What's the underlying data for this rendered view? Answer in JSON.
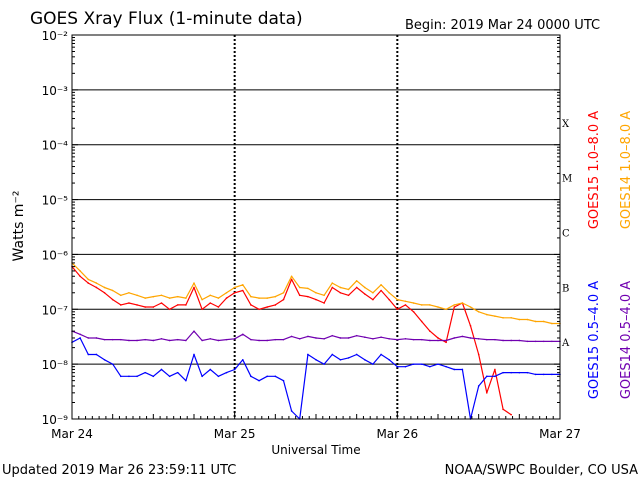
{
  "chart_data": {
    "type": "line",
    "title": "GOES Xray Flux (1-minute data)",
    "begin_text": "Begin:  2019 Mar 24 0000 UTC",
    "ylabel": "Watts m⁻²",
    "xlabel": "Universal Time",
    "y_scale": "log",
    "ylim": [
      1e-09,
      0.01
    ],
    "x_unit": "days since 2019 Mar 24 00:00 UTC",
    "xlim": [
      0,
      3
    ],
    "x_ticks": [
      {
        "value": 0,
        "label": "Mar 24"
      },
      {
        "value": 1,
        "label": "Mar 25"
      },
      {
        "value": 2,
        "label": "Mar 26"
      },
      {
        "value": 3,
        "label": "Mar 27"
      }
    ],
    "y_ticks": [
      {
        "exp": -2,
        "label": "10⁻²"
      },
      {
        "exp": -3,
        "label": "10⁻³"
      },
      {
        "exp": -4,
        "label": "10⁻⁴"
      },
      {
        "exp": -5,
        "label": "10⁻⁵"
      },
      {
        "exp": -6,
        "label": "10⁻⁶"
      },
      {
        "exp": -7,
        "label": "10⁻⁷"
      },
      {
        "exp": -8,
        "label": "10⁻⁸"
      },
      {
        "exp": -9,
        "label": "10⁻⁹"
      }
    ],
    "flare_classes": [
      {
        "label": "X",
        "exp": -3.6
      },
      {
        "label": "M",
        "exp": -4.6
      },
      {
        "label": "C",
        "exp": -5.6
      },
      {
        "label": "B",
        "exp": -6.6
      },
      {
        "label": "A",
        "exp": -7.6
      }
    ],
    "grid": true,
    "legend_placement": "right, vertical",
    "series": [
      {
        "name": "GOES15 1.0–8.0 A",
        "color": "#ff0000",
        "x": [
          0.0,
          0.05,
          0.1,
          0.15,
          0.2,
          0.25,
          0.3,
          0.35,
          0.4,
          0.45,
          0.5,
          0.55,
          0.6,
          0.65,
          0.7,
          0.75,
          0.8,
          0.85,
          0.9,
          0.95,
          1.0,
          1.05,
          1.1,
          1.15,
          1.2,
          1.25,
          1.3,
          1.35,
          1.4,
          1.45,
          1.5,
          1.55,
          1.6,
          1.65,
          1.7,
          1.75,
          1.8,
          1.85,
          1.9,
          1.95,
          2.0,
          2.05,
          2.1,
          2.15,
          2.2,
          2.25,
          2.3,
          2.35,
          2.4,
          2.45,
          2.5,
          2.55,
          2.6,
          2.65,
          2.7
        ],
        "y": [
          6e-07,
          4e-07,
          3e-07,
          2.5e-07,
          2e-07,
          1.5e-07,
          1.2e-07,
          1.3e-07,
          1.2e-07,
          1.1e-07,
          1.1e-07,
          1.3e-07,
          1e-07,
          1.2e-07,
          1.2e-07,
          2.5e-07,
          1e-07,
          1.3e-07,
          1.1e-07,
          1.6e-07,
          2e-07,
          2.2e-07,
          1.2e-07,
          1e-07,
          1.1e-07,
          1.2e-07,
          1.5e-07,
          3.5e-07,
          1.8e-07,
          1.7e-07,
          1.5e-07,
          1.3e-07,
          2.5e-07,
          2e-07,
          1.8e-07,
          2.5e-07,
          1.9e-07,
          1.5e-07,
          2.2e-07,
          1.5e-07,
          1e-07,
          1.2e-07,
          9e-08,
          6e-08,
          4e-08,
          3e-08,
          2.5e-08,
          1.1e-07,
          1.3e-07,
          5e-08,
          1.5e-08,
          3e-09,
          8e-09,
          1.5e-09,
          1.2e-09
        ]
      },
      {
        "name": "GOES14 1.0–8.0 A",
        "color": "#ffa500",
        "x": [
          0.0,
          0.05,
          0.1,
          0.15,
          0.2,
          0.25,
          0.3,
          0.35,
          0.4,
          0.45,
          0.5,
          0.55,
          0.6,
          0.65,
          0.7,
          0.75,
          0.8,
          0.85,
          0.9,
          0.95,
          1.0,
          1.05,
          1.1,
          1.15,
          1.2,
          1.25,
          1.3,
          1.35,
          1.4,
          1.45,
          1.5,
          1.55,
          1.6,
          1.65,
          1.7,
          1.75,
          1.8,
          1.85,
          1.9,
          1.95,
          2.0,
          2.05,
          2.1,
          2.15,
          2.2,
          2.25,
          2.3,
          2.35,
          2.4,
          2.45,
          2.5,
          2.55,
          2.6,
          2.65,
          2.7,
          2.75,
          2.8,
          2.85,
          2.9,
          2.95,
          3.0
        ],
        "y": [
          7e-07,
          5e-07,
          3.5e-07,
          3e-07,
          2.5e-07,
          2.2e-07,
          1.8e-07,
          2e-07,
          1.8e-07,
          1.6e-07,
          1.7e-07,
          1.8e-07,
          1.6e-07,
          1.7e-07,
          1.6e-07,
          3e-07,
          1.5e-07,
          1.8e-07,
          1.6e-07,
          2e-07,
          2.5e-07,
          2.8e-07,
          1.7e-07,
          1.6e-07,
          1.6e-07,
          1.7e-07,
          2e-07,
          4e-07,
          2.5e-07,
          2.4e-07,
          2e-07,
          1.8e-07,
          3e-07,
          2.5e-07,
          2.3e-07,
          3.3e-07,
          2.5e-07,
          2e-07,
          2.8e-07,
          2e-07,
          1.5e-07,
          1.4e-07,
          1.3e-07,
          1.2e-07,
          1.2e-07,
          1.1e-07,
          1e-07,
          1.2e-07,
          1.3e-07,
          1.1e-07,
          9e-08,
          8e-08,
          7.5e-08,
          7e-08,
          7e-08,
          6.5e-08,
          6.5e-08,
          6e-08,
          6e-08,
          5.5e-08,
          5.5e-08
        ]
      },
      {
        "name": "GOES15 0.5–4.0 A",
        "color": "#0000ff",
        "x": [
          0.0,
          0.05,
          0.1,
          0.15,
          0.2,
          0.25,
          0.3,
          0.35,
          0.4,
          0.45,
          0.5,
          0.55,
          0.6,
          0.65,
          0.7,
          0.75,
          0.8,
          0.85,
          0.9,
          0.95,
          1.0,
          1.05,
          1.1,
          1.15,
          1.2,
          1.25,
          1.3,
          1.35,
          1.4,
          1.45,
          1.5,
          1.55,
          1.6,
          1.65,
          1.7,
          1.75,
          1.8,
          1.85,
          1.9,
          1.95,
          2.0,
          2.05,
          2.1,
          2.15,
          2.2,
          2.25,
          2.3,
          2.35,
          2.4,
          2.45,
          2.5,
          2.55,
          2.6,
          2.65,
          2.7,
          2.75,
          2.8,
          2.85,
          2.9,
          2.95,
          3.0
        ],
        "y": [
          2.5e-08,
          3e-08,
          1.5e-08,
          1.5e-08,
          1.2e-08,
          1e-08,
          6e-09,
          6e-09,
          6e-09,
          7e-09,
          6e-09,
          8e-09,
          6e-09,
          7e-09,
          5e-09,
          1.5e-08,
          6e-09,
          8e-09,
          6e-09,
          7e-09,
          8e-09,
          1.2e-08,
          6e-09,
          5e-09,
          6e-09,
          6e-09,
          5e-09,
          1.4e-09,
          1e-09,
          1.5e-08,
          1.2e-08,
          1e-08,
          1.5e-08,
          1.2e-08,
          1.3e-08,
          1.5e-08,
          1.2e-08,
          1e-08,
          1.5e-08,
          1.2e-08,
          9e-09,
          9e-09,
          1e-08,
          1e-08,
          9e-09,
          1e-08,
          9e-09,
          8e-09,
          8e-09,
          1e-09,
          4e-09,
          6e-09,
          6e-09,
          7e-09,
          7e-09,
          7e-09,
          7e-09,
          6.5e-09,
          6.5e-09,
          6.5e-09,
          6.5e-09
        ]
      },
      {
        "name": "GOES14 0.5–4.0 A",
        "color": "#7000b0",
        "x": [
          0.0,
          0.05,
          0.1,
          0.15,
          0.2,
          0.25,
          0.3,
          0.35,
          0.4,
          0.45,
          0.5,
          0.55,
          0.6,
          0.65,
          0.7,
          0.75,
          0.8,
          0.85,
          0.9,
          0.95,
          1.0,
          1.05,
          1.1,
          1.15,
          1.2,
          1.25,
          1.3,
          1.35,
          1.4,
          1.45,
          1.5,
          1.55,
          1.6,
          1.65,
          1.7,
          1.75,
          1.8,
          1.85,
          1.9,
          1.95,
          2.0,
          2.05,
          2.1,
          2.15,
          2.2,
          2.25,
          2.3,
          2.35,
          2.4,
          2.45,
          2.5,
          2.55,
          2.6,
          2.65,
          2.7,
          2.75,
          2.8,
          2.85,
          2.9,
          2.95,
          3.0
        ],
        "y": [
          4e-08,
          3.5e-08,
          3e-08,
          3e-08,
          2.8e-08,
          2.8e-08,
          2.8e-08,
          2.7e-08,
          2.7e-08,
          2.8e-08,
          2.7e-08,
          2.9e-08,
          2.7e-08,
          2.8e-08,
          2.7e-08,
          4e-08,
          2.7e-08,
          2.9e-08,
          2.7e-08,
          2.8e-08,
          2.9e-08,
          3.5e-08,
          2.8e-08,
          2.7e-08,
          2.7e-08,
          2.8e-08,
          2.8e-08,
          3.2e-08,
          2.9e-08,
          3.2e-08,
          3e-08,
          2.9e-08,
          3.3e-08,
          3e-08,
          3e-08,
          3.3e-08,
          3.1e-08,
          2.9e-08,
          3.1e-08,
          2.9e-08,
          2.8e-08,
          2.9e-08,
          2.8e-08,
          2.8e-08,
          2.7e-08,
          2.7e-08,
          2.7e-08,
          3e-08,
          3.2e-08,
          3e-08,
          2.9e-08,
          2.8e-08,
          2.8e-08,
          2.7e-08,
          2.7e-08,
          2.7e-08,
          2.6e-08,
          2.6e-08,
          2.6e-08,
          2.6e-08,
          2.6e-08
        ]
      }
    ]
  },
  "footer": {
    "updated_text": "Updated 2019 Mar 26 23:59:11 UTC",
    "credit_text": "NOAA/SWPC Boulder, CO USA"
  }
}
